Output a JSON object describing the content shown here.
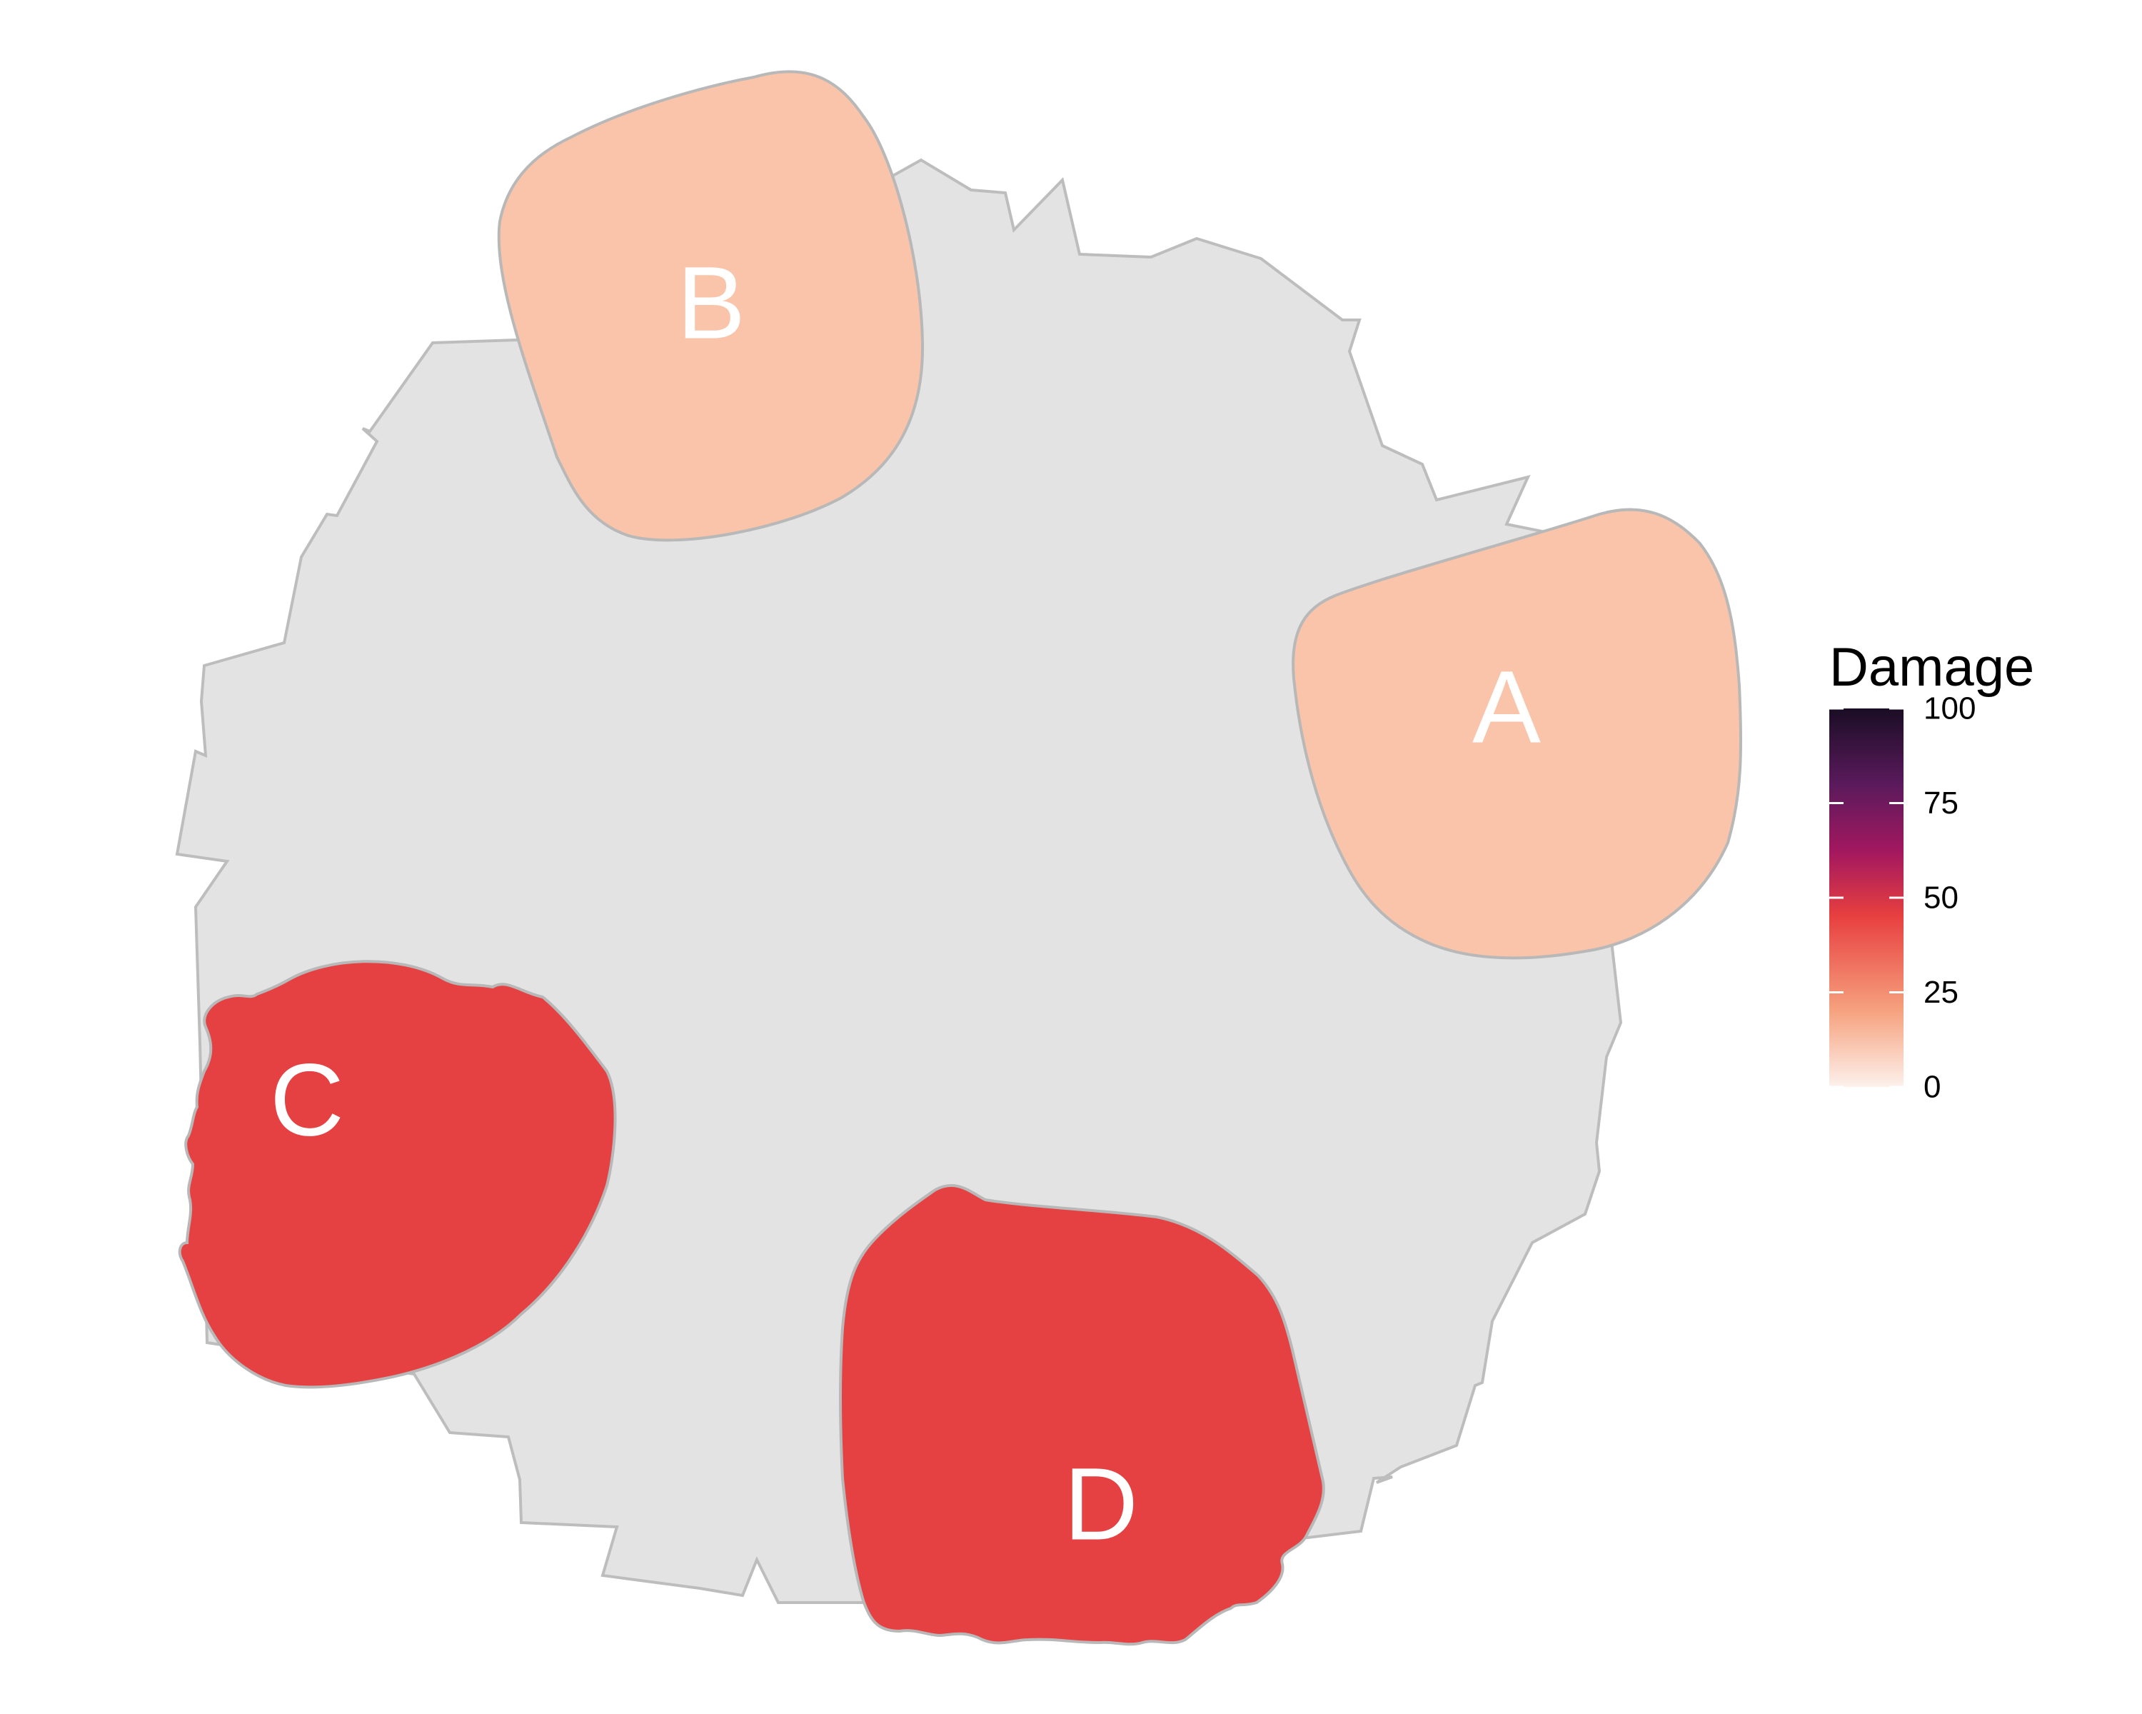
{
  "chart_data": {
    "type": "heatmap",
    "regions": [
      {
        "label": "A",
        "value": 20
      },
      {
        "label": "B",
        "value": 20
      },
      {
        "label": "C",
        "value": 40
      },
      {
        "label": "D",
        "value": 40
      }
    ],
    "legend": {
      "title": "Damage",
      "range": [
        0,
        100
      ],
      "ticks": [
        "0",
        "25",
        "50",
        "75",
        "100"
      ],
      "colors": [
        "#fdf1ec",
        "#f6a27f",
        "#e8403f",
        "#a4185f",
        "#5a1a5c",
        "#1a0d24"
      ],
      "placement": "right"
    },
    "background_fill": "#e3e3e4",
    "outline_color": "#bdbdbd"
  }
}
